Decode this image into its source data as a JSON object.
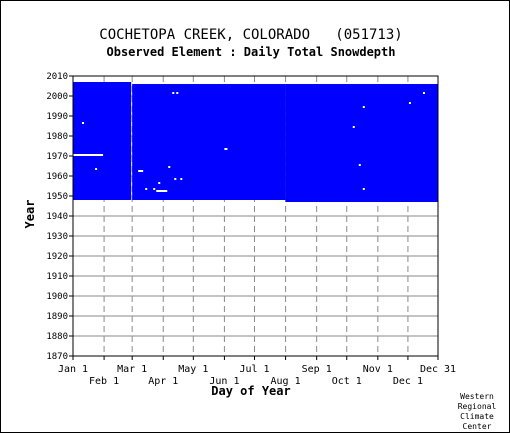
{
  "chart_data": {
    "type": "heatmap",
    "title": "COCHETOPA CREEK, COLORADO   (051713)",
    "subtitle": "Observed Element : Daily Total Snowdepth",
    "xlabel": "Day of Year",
    "ylabel": "Year",
    "ylim": [
      1870,
      2010
    ],
    "y_ticks": [
      1870,
      1880,
      1890,
      1900,
      1910,
      1920,
      1930,
      1940,
      1950,
      1960,
      1970,
      1980,
      1990,
      2000,
      2010
    ],
    "x_ticks_upper": [
      {
        "label": "Jan 1",
        "day": 1
      },
      {
        "label": "Mar 1",
        "day": 60
      },
      {
        "label": "May 1",
        "day": 121
      },
      {
        "label": "Jul 1",
        "day": 182
      },
      {
        "label": "Sep 1",
        "day": 244
      },
      {
        "label": "Nov 1",
        "day": 305
      },
      {
        "label": "Dec 31",
        "day": 365
      }
    ],
    "x_ticks_lower": [
      {
        "label": "Feb 1",
        "day": 32
      },
      {
        "label": "Apr 1",
        "day": 91
      },
      {
        "label": "Jun 1",
        "day": 152
      },
      {
        "label": "Aug 1",
        "day": 213
      },
      {
        "label": "Oct 1",
        "day": 274
      },
      {
        "label": "Dec 1",
        "day": 335
      }
    ],
    "series_color": "#0000ff",
    "coverage_blocks": [
      {
        "day_start": 1,
        "day_end": 58,
        "year_start": 1948,
        "year_end": 2006
      },
      {
        "day_start": 60,
        "day_end": 212,
        "year_start": 1948,
        "year_end": 2005
      },
      {
        "day_start": 213,
        "day_end": 365,
        "year_start": 1947,
        "year_end": 2005
      }
    ],
    "missing": [
      {
        "day_start": 1,
        "day_end": 30,
        "year": 1970
      },
      {
        "day_start": 23,
        "day_end": 24,
        "year": 1963
      },
      {
        "day_start": 10,
        "day_end": 11,
        "year": 1986
      },
      {
        "day_start": 66,
        "day_end": 70,
        "year": 1962
      },
      {
        "day_start": 73,
        "day_end": 74,
        "year": 1953
      },
      {
        "day_start": 81,
        "day_end": 82,
        "year": 1953
      },
      {
        "day_start": 84,
        "day_end": 94,
        "year": 1952
      },
      {
        "day_start": 86,
        "day_end": 87,
        "year": 1956
      },
      {
        "day_start": 102,
        "day_end": 103,
        "year": 1958
      },
      {
        "day_start": 108,
        "day_end": 109,
        "year": 1958
      },
      {
        "day_start": 96,
        "day_end": 97,
        "year": 1964
      },
      {
        "day_start": 100,
        "day_end": 101,
        "year": 2001
      },
      {
        "day_start": 104,
        "day_end": 105,
        "year": 2001
      },
      {
        "day_start": 152,
        "day_end": 154,
        "year": 1973
      },
      {
        "day_start": 280,
        "day_end": 281,
        "year": 1984
      },
      {
        "day_start": 290,
        "day_end": 291,
        "year": 1994
      },
      {
        "day_start": 290,
        "day_end": 291,
        "year": 1953
      },
      {
        "day_start": 286,
        "day_end": 287,
        "year": 1965
      },
      {
        "day_start": 336,
        "day_end": 337,
        "year": 1996
      },
      {
        "day_start": 350,
        "day_end": 351,
        "year": 2001
      },
      {
        "day_start": 365,
        "day_end": 365,
        "year": 1987
      },
      {
        "day_start": 365,
        "day_end": 365,
        "year": 1975
      }
    ]
  },
  "credit": [
    "Western",
    "Regional",
    "Climate",
    "Center"
  ]
}
